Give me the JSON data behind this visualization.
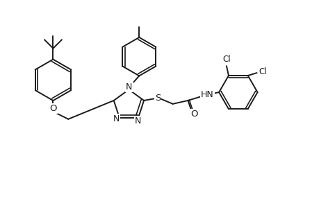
{
  "bg_color": "#ffffff",
  "line_color": "#1a1a1a",
  "line_width": 1.4,
  "font_size": 8.5,
  "figsize": [
    4.6,
    3.0
  ],
  "dpi": 100,
  "xlim": [
    0,
    46
  ],
  "ylim": [
    0,
    30
  ]
}
